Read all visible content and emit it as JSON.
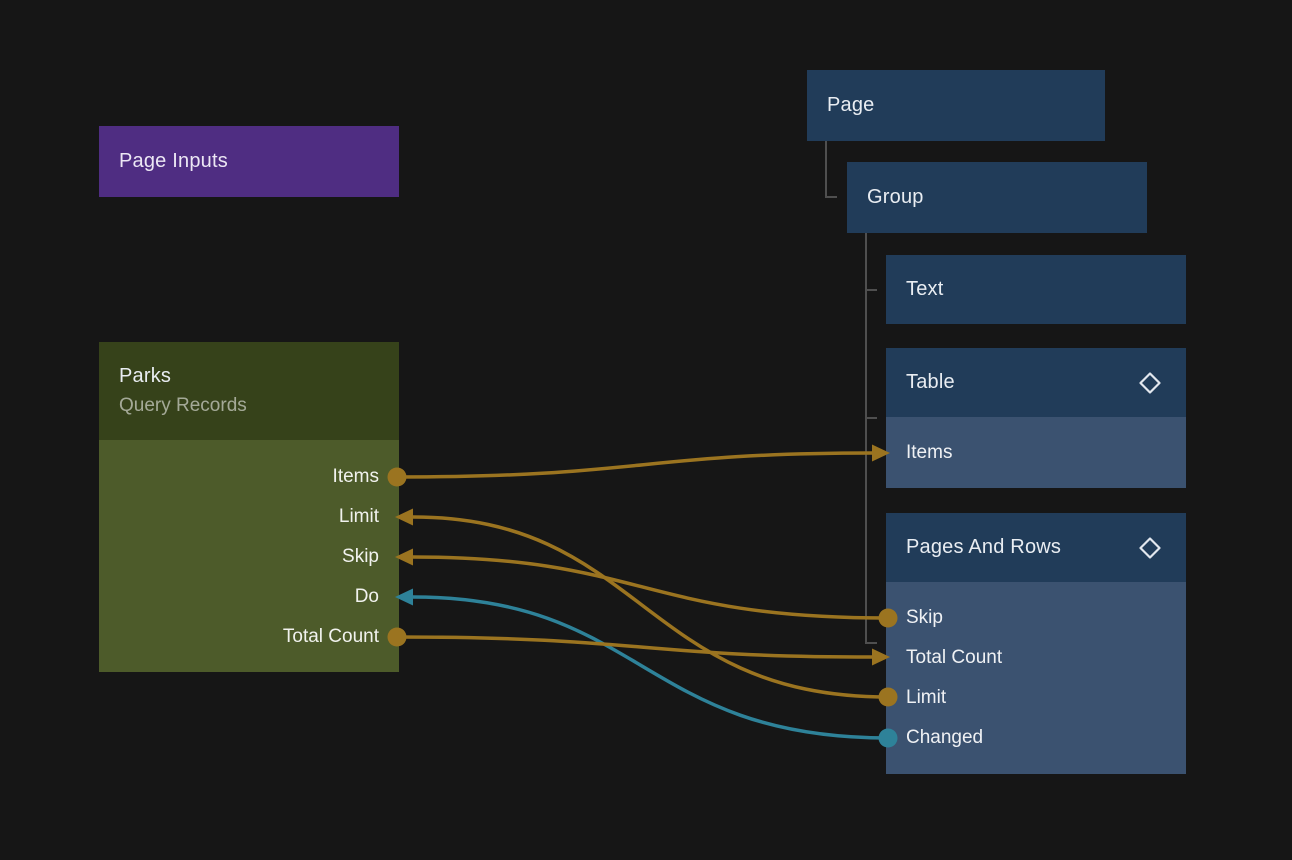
{
  "canvas": {
    "background": "#161616"
  },
  "colors": {
    "orange": "#9b7420",
    "teal": "#2e8299",
    "tree_line": "#4f4f4f",
    "purple": "#4f2d82",
    "green_header": "#36421a",
    "green_body": "#4d5b2a",
    "navy_header": "#213c59",
    "navy_body": "#3b5270"
  },
  "nodes": {
    "page_inputs": {
      "title": "Page Inputs"
    },
    "parks": {
      "title": "Parks",
      "subtitle": "Query Records",
      "ports": [
        {
          "id": "items",
          "label": "Items",
          "dir": "out"
        },
        {
          "id": "limit",
          "label": "Limit",
          "dir": "in"
        },
        {
          "id": "skip",
          "label": "Skip",
          "dir": "in"
        },
        {
          "id": "do",
          "label": "Do",
          "dir": "in"
        },
        {
          "id": "total_count",
          "label": "Total Count",
          "dir": "out"
        }
      ]
    },
    "page": {
      "title": "Page"
    },
    "group": {
      "title": "Group"
    },
    "text": {
      "title": "Text"
    },
    "table": {
      "title": "Table",
      "icon": "diamond-icon",
      "rows": [
        {
          "id": "items",
          "label": "Items",
          "dir": "in"
        }
      ]
    },
    "pages_and_rows": {
      "title": "Pages And Rows",
      "icon": "diamond-icon",
      "rows": [
        {
          "id": "skip",
          "label": "Skip",
          "dir": "out"
        },
        {
          "id": "total_count",
          "label": "Total Count",
          "dir": "in"
        },
        {
          "id": "limit",
          "label": "Limit",
          "dir": "out"
        },
        {
          "id": "changed",
          "label": "Changed",
          "dir": "out"
        }
      ]
    }
  },
  "edges": [
    {
      "from": "parks.items",
      "to": "table.items",
      "color": "orange"
    },
    {
      "from": "pages_and_rows.skip",
      "to": "parks.skip",
      "color": "orange"
    },
    {
      "from": "pages_and_rows.limit",
      "to": "parks.limit",
      "color": "orange"
    },
    {
      "from": "pages_and_rows.changed",
      "to": "parks.do",
      "color": "teal"
    },
    {
      "from": "parks.total_count",
      "to": "pages_and_rows.total_count",
      "color": "orange"
    }
  ]
}
